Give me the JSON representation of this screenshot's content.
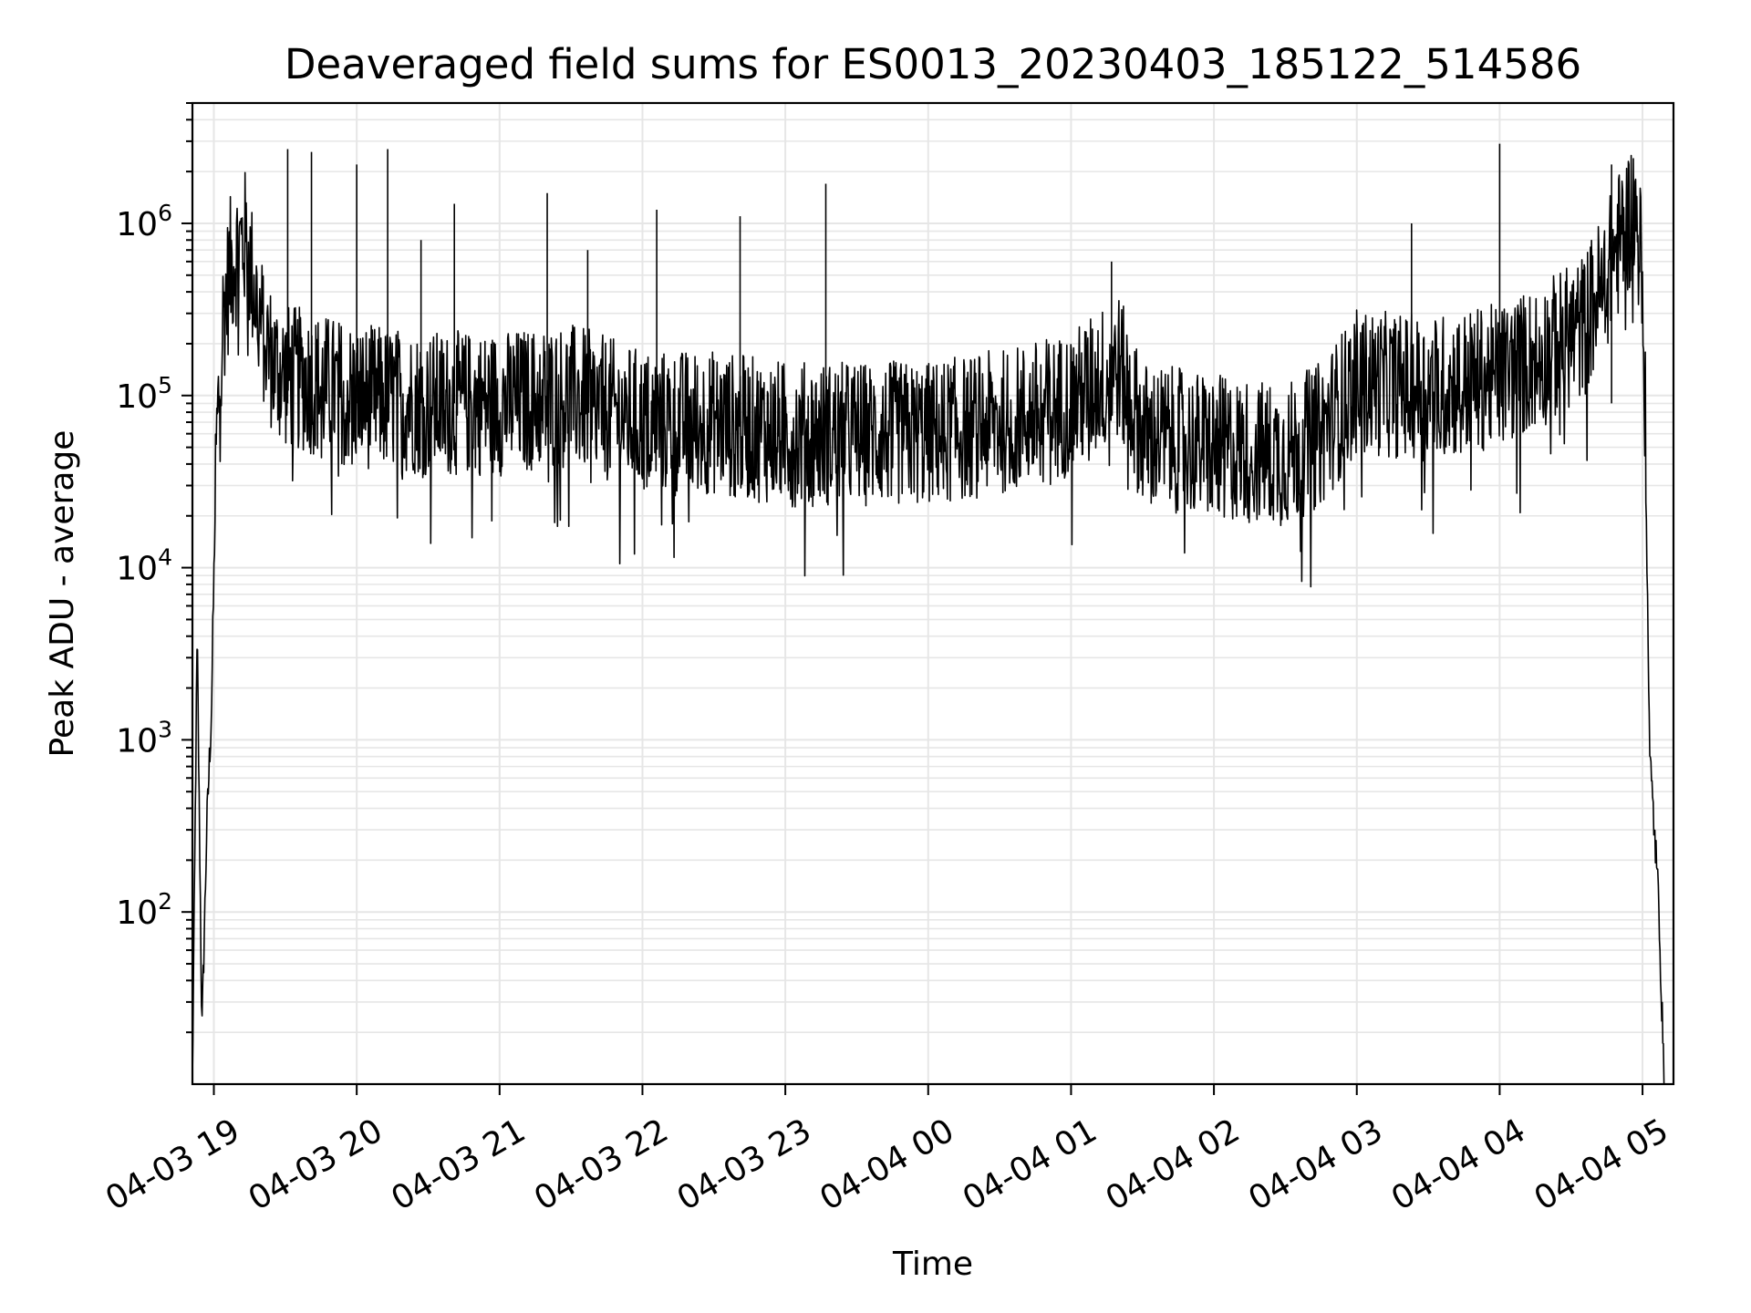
{
  "chart_data": {
    "type": "line",
    "title": "Deaveraged field sums for ES0013_20230403_185122_514586",
    "xlabel": "Time",
    "ylabel": "Peak ADU - average",
    "yscale": "log",
    "ylim": [
      10,
      5000000
    ],
    "xlim": [
      "2023-04-03T18:51",
      "2023-04-04T05:13"
    ],
    "grid": true,
    "legend": false,
    "line_color": "#000000",
    "x_ticks": [
      "04-03 19",
      "04-03 20",
      "04-03 21",
      "04-03 22",
      "04-03 23",
      "04-04 00",
      "04-04 01",
      "04-04 02",
      "04-04 03",
      "04-04 04",
      "04-04 05"
    ],
    "y_ticks": [
      {
        "value": 100,
        "base": "10",
        "exp": "2"
      },
      {
        "value": 1000,
        "base": "10",
        "exp": "3"
      },
      {
        "value": 10000,
        "base": "10",
        "exp": "4"
      },
      {
        "value": 100000,
        "base": "10",
        "exp": "5"
      },
      {
        "value": 1000000,
        "base": "10",
        "exp": "6"
      }
    ],
    "series": [
      {
        "x": [
          "2023-04-03T18:51",
          "2023-04-03T18:53",
          "2023-04-03T18:55",
          "2023-04-03T18:57",
          "2023-04-03T18:59",
          "2023-04-03T19:01",
          "2023-04-03T19:04",
          "2023-04-03T19:07",
          "2023-04-03T19:10",
          "2023-04-03T19:13",
          "2023-04-03T19:16",
          "2023-04-03T19:20",
          "2023-04-03T19:25",
          "2023-04-03T19:30",
          "2023-04-03T19:40",
          "2023-04-03T20:00",
          "2023-04-03T20:30",
          "2023-04-03T21:00",
          "2023-04-03T21:30",
          "2023-04-03T22:00",
          "2023-04-03T22:30",
          "2023-04-03T23:00",
          "2023-04-03T23:30",
          "2023-04-04T00:00",
          "2023-04-04T00:30",
          "2023-04-04T01:00",
          "2023-04-04T01:20",
          "2023-04-04T01:30",
          "2023-04-04T02:00",
          "2023-04-04T02:30",
          "2023-04-04T02:45",
          "2023-04-04T03:00",
          "2023-04-04T03:30",
          "2023-04-04T04:00",
          "2023-04-04T04:20",
          "2023-04-04T04:35",
          "2023-04-04T04:45",
          "2023-04-04T04:52",
          "2023-04-04T04:56",
          "2023-04-04T04:59",
          "2023-04-04T05:01",
          "2023-04-04T05:03",
          "2023-04-04T05:05",
          "2023-04-04T05:07",
          "2023-04-04T05:09"
        ],
        "y": [
          10,
          4000,
          20,
          300,
          1500,
          50000,
          300000,
          550000,
          700000,
          800000,
          500000,
          250000,
          150000,
          130000,
          120000,
          100000,
          90000,
          90000,
          100000,
          70000,
          70000,
          60000,
          60000,
          60000,
          70000,
          90000,
          150000,
          60000,
          50000,
          45000,
          60000,
          120000,
          110000,
          130000,
          180000,
          250000,
          500000,
          900000,
          1200000,
          800000,
          100000,
          800,
          300,
          100,
          10
        ]
      }
    ],
    "spikes": [
      {
        "x": "2023-04-03T19:31",
        "y": 2700000
      },
      {
        "x": "2023-04-03T19:41",
        "y": 2600000
      },
      {
        "x": "2023-04-03T20:00",
        "y": 2200000
      },
      {
        "x": "2023-04-03T20:13",
        "y": 2700000
      },
      {
        "x": "2023-04-03T20:27",
        "y": 800000
      },
      {
        "x": "2023-04-03T20:41",
        "y": 1300000
      },
      {
        "x": "2023-04-03T21:20",
        "y": 1500000
      },
      {
        "x": "2023-04-03T21:37",
        "y": 700000
      },
      {
        "x": "2023-04-03T22:06",
        "y": 1200000
      },
      {
        "x": "2023-04-03T22:41",
        "y": 1100000
      },
      {
        "x": "2023-04-03T23:17",
        "y": 1700000
      },
      {
        "x": "2023-04-04T01:17",
        "y": 600000
      },
      {
        "x": "2023-04-04T03:23",
        "y": 1000000
      },
      {
        "x": "2023-04-04T04:00",
        "y": 2900000
      },
      {
        "x": "2023-04-04T04:47",
        "y": 2200000
      }
    ]
  }
}
